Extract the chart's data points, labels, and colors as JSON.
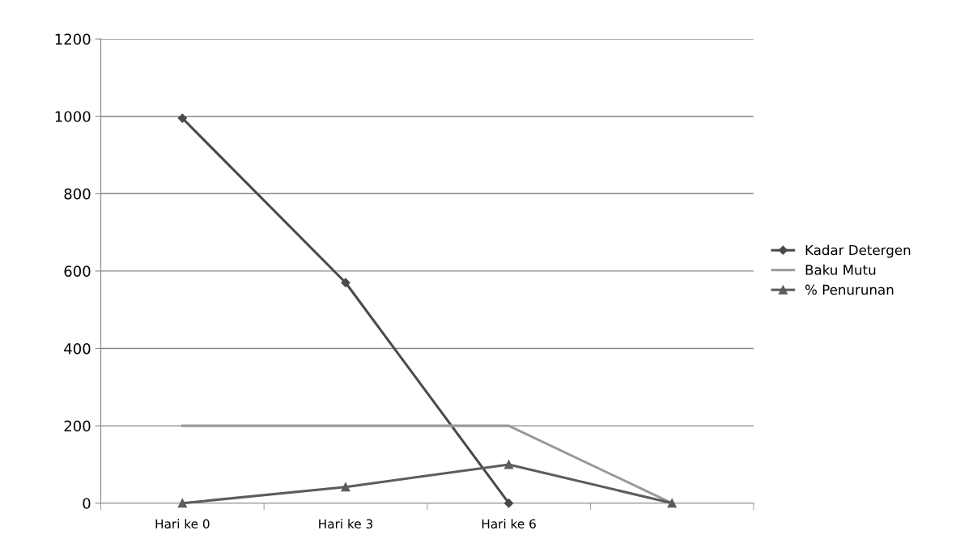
{
  "chart_data": {
    "type": "line",
    "categories": [
      "Hari ke 0",
      "Hari ke 3",
      "Hari ke 6",
      null
    ],
    "series": [
      {
        "name": "Kadar Detergen",
        "color": "#4a4a4a",
        "values": [
          995,
          570,
          0,
          null
        ],
        "marker": "diamond"
      },
      {
        "name": "Baku Mutu",
        "color": "#9a9a9a",
        "values": [
          200,
          200,
          200,
          0
        ],
        "marker": "none"
      },
      {
        "name": "% Penurunan",
        "color": "#5c5c5c",
        "values": [
          0,
          42,
          100,
          0
        ],
        "marker": "triangle"
      }
    ],
    "ylim": [
      0,
      1200
    ],
    "yticks": [
      0,
      200,
      400,
      600,
      800,
      1000,
      1200
    ],
    "grid": "y",
    "legend": "right",
    "line_style": "solid"
  }
}
